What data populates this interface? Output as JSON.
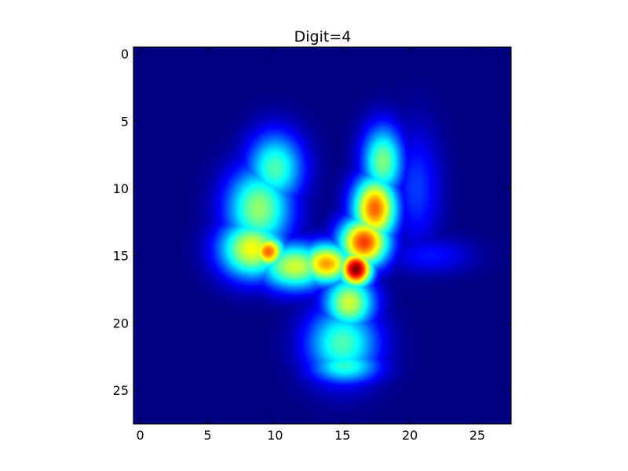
{
  "chart_data": {
    "type": "heatmap",
    "title": "Digit=4",
    "xlabel": "",
    "ylabel": "",
    "xlim": [
      -0.5,
      27.5
    ],
    "ylim": [
      27.5,
      -0.5
    ],
    "y_axis_inverted": true,
    "grid": false,
    "colormap": "jet",
    "interpolation": "smooth",
    "x_ticks": [
      0,
      5,
      10,
      15,
      20,
      25
    ],
    "y_ticks": [
      0,
      5,
      10,
      15,
      20,
      25
    ],
    "x_tick_labels": [
      "0",
      "5",
      "10",
      "15",
      "20",
      "25"
    ],
    "y_tick_labels": [
      "0",
      "5",
      "10",
      "15",
      "20",
      "25"
    ],
    "value_range": [
      0,
      1
    ],
    "intensity_blobs": [
      {
        "cx": 10.0,
        "cy": 8.5,
        "rx": 1.9,
        "ry": 2.4,
        "value": 0.45
      },
      {
        "cx": 8.8,
        "cy": 11.5,
        "rx": 2.2,
        "ry": 2.8,
        "value": 0.52
      },
      {
        "cx": 8.3,
        "cy": 14.5,
        "rx": 2.2,
        "ry": 2.0,
        "value": 0.62
      },
      {
        "cx": 9.5,
        "cy": 14.7,
        "rx": 1.1,
        "ry": 1.1,
        "value": 0.78
      },
      {
        "cx": 11.5,
        "cy": 15.8,
        "rx": 2.4,
        "ry": 1.6,
        "value": 0.58
      },
      {
        "cx": 13.8,
        "cy": 15.6,
        "rx": 1.8,
        "ry": 1.4,
        "value": 0.72
      },
      {
        "cx": 18.0,
        "cy": 8.0,
        "rx": 1.4,
        "ry": 2.4,
        "value": 0.5
      },
      {
        "cx": 17.4,
        "cy": 11.5,
        "rx": 1.5,
        "ry": 2.2,
        "value": 0.78
      },
      {
        "cx": 16.6,
        "cy": 14.0,
        "rx": 1.7,
        "ry": 1.7,
        "value": 0.82
      },
      {
        "cx": 16.0,
        "cy": 16.0,
        "rx": 1.1,
        "ry": 1.2,
        "value": 1.0
      },
      {
        "cx": 15.5,
        "cy": 18.5,
        "rx": 1.7,
        "ry": 1.8,
        "value": 0.58
      },
      {
        "cx": 15.0,
        "cy": 21.5,
        "rx": 2.4,
        "ry": 2.5,
        "value": 0.45
      },
      {
        "cx": 15.2,
        "cy": 23.2,
        "rx": 2.3,
        "ry": 1.2,
        "value": 0.42
      },
      {
        "cx": 20.5,
        "cy": 10.0,
        "rx": 1.6,
        "ry": 4.0,
        "value": 0.18
      },
      {
        "cx": 21.5,
        "cy": 15.0,
        "rx": 2.8,
        "ry": 1.2,
        "value": 0.14
      }
    ]
  }
}
